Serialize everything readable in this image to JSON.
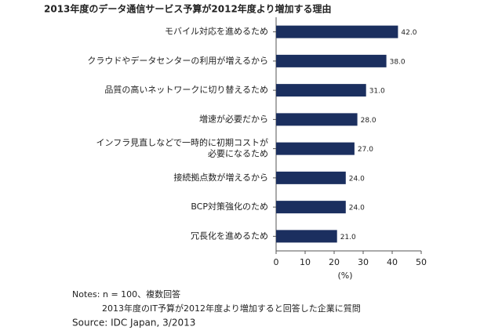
{
  "chart_data": {
    "type": "barh",
    "title": "2013年度のデータ通信サービス予算が2012年度より増加する理由",
    "categories": [
      "モバイル対応を進めるため",
      "クラウドやデータセンターの利用が増えるから",
      "品質の高いネットワークに切り替えるため",
      "増速が必要だから",
      "インフラ見直しなどで一時的に初期コストが\n必要になるため",
      "接続拠点数が増えるから",
      "BCP対策強化のため",
      "冗長化を進めるため"
    ],
    "values": [
      42,
      38,
      31,
      28,
      27,
      24,
      24,
      21
    ],
    "value_labels": [
      "42.0",
      "38.0",
      "31.0",
      "28.0",
      "27.0",
      "24.0",
      "24.0",
      "21.0"
    ],
    "color": "#1b2f5f",
    "xlim": [
      0,
      50
    ],
    "xticks": [
      0,
      10,
      20,
      30,
      40,
      50
    ],
    "xlabel": "(%)",
    "notes": [
      "Notes:  n = 100、複数回答",
      "2013年度のIT予算が2012年度より増加すると回答した企業に質問"
    ],
    "source": "Source: IDC Japan, 3/2013"
  }
}
